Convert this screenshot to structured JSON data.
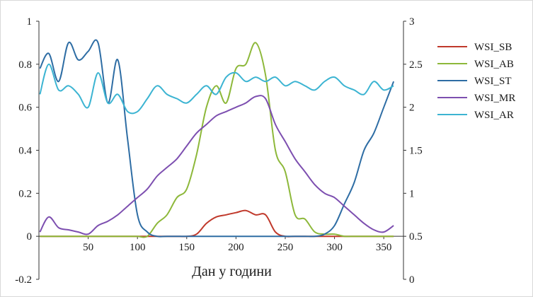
{
  "chart_data": {
    "type": "line",
    "title": "",
    "xlabel": "Дан у години",
    "ylabel": "",
    "ylabel_right": "",
    "xlim": [
      0,
      370
    ],
    "ylim": [
      -0.2,
      1
    ],
    "ylim_right": [
      0,
      3
    ],
    "x_ticks": [
      "50",
      "100",
      "150",
      "200",
      "250",
      "300",
      "350"
    ],
    "y_ticks_left": [
      "-0.2",
      "0",
      "0.2",
      "0.4",
      "0.6",
      "0.8",
      "1"
    ],
    "y_ticks_right": [
      "0",
      "0.5",
      "1",
      "1.5",
      "2",
      "2.5",
      "3"
    ],
    "legend_position": "right",
    "grid": false,
    "x": [
      1,
      10,
      20,
      30,
      40,
      50,
      60,
      70,
      80,
      90,
      100,
      110,
      120,
      130,
      140,
      150,
      160,
      170,
      180,
      190,
      200,
      210,
      220,
      230,
      240,
      250,
      260,
      270,
      280,
      290,
      300,
      310,
      320,
      330,
      340,
      350,
      360
    ],
    "series": [
      {
        "name": "WSI_SB",
        "color": "#c0392b",
        "axis": "left",
        "values": [
          0,
          0,
          0,
          0,
          0,
          0,
          0,
          0,
          0,
          0,
          0,
          0,
          0,
          0,
          0,
          0,
          0.01,
          0.06,
          0.09,
          0.1,
          0.11,
          0.12,
          0.1,
          0.1,
          0.02,
          0,
          0,
          0,
          0,
          0,
          0,
          0,
          0,
          0,
          0,
          0,
          0
        ]
      },
      {
        "name": "WSI_AB",
        "color": "#8db83a",
        "axis": "left",
        "values": [
          0,
          0,
          0,
          0,
          0,
          0,
          0,
          0,
          0,
          0,
          0,
          0,
          0.06,
          0.1,
          0.18,
          0.22,
          0.38,
          0.6,
          0.7,
          0.62,
          0.78,
          0.8,
          0.9,
          0.75,
          0.4,
          0.3,
          0.1,
          0.08,
          0.02,
          0.01,
          0.01,
          0,
          0,
          0,
          0,
          0,
          0
        ]
      },
      {
        "name": "WSI_ST",
        "color": "#2e6da4",
        "axis": "left",
        "values": [
          0.78,
          0.85,
          0.72,
          0.9,
          0.82,
          0.86,
          0.9,
          0.62,
          0.82,
          0.45,
          0.1,
          0.02,
          0,
          0,
          0,
          0,
          0,
          0,
          0,
          0,
          0,
          0,
          0,
          0,
          0,
          0,
          0,
          0,
          0,
          0.01,
          0.05,
          0.15,
          0.25,
          0.4,
          0.48,
          0.6,
          0.72
        ]
      },
      {
        "name": "WSI_MR",
        "color": "#7d4fb0",
        "axis": "left",
        "values": [
          0.02,
          0.09,
          0.04,
          0.03,
          0.02,
          0.01,
          0.05,
          0.07,
          0.1,
          0.14,
          0.18,
          0.22,
          0.28,
          0.32,
          0.36,
          0.42,
          0.48,
          0.52,
          0.56,
          0.58,
          0.6,
          0.62,
          0.65,
          0.64,
          0.52,
          0.44,
          0.36,
          0.3,
          0.24,
          0.2,
          0.18,
          0.14,
          0.1,
          0.06,
          0.03,
          0.02,
          0.05
        ]
      },
      {
        "name": "WSI_AR",
        "color": "#3cb4d2",
        "axis": "left",
        "values": [
          0.66,
          0.8,
          0.68,
          0.7,
          0.66,
          0.6,
          0.76,
          0.62,
          0.66,
          0.58,
          0.58,
          0.64,
          0.7,
          0.66,
          0.64,
          0.62,
          0.66,
          0.7,
          0.66,
          0.74,
          0.76,
          0.72,
          0.74,
          0.72,
          0.74,
          0.7,
          0.72,
          0.7,
          0.68,
          0.72,
          0.74,
          0.7,
          0.68,
          0.66,
          0.72,
          0.68,
          0.7
        ]
      }
    ]
  }
}
